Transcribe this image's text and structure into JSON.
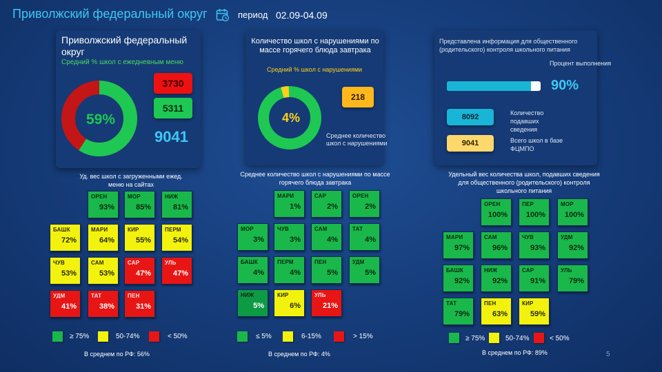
{
  "header": {
    "title": "Приволжский федеральный округ",
    "period_label": "период",
    "period_value": "02.09-04.09"
  },
  "card_menu": {
    "title": "Приволжский федеральный округ",
    "subtitle": "Средний % школ с ежедневным меню",
    "percent_label": "59%",
    "percent": 59,
    "count_red": "3730",
    "count_green": "5311",
    "total": "9041"
  },
  "card_violations": {
    "title": "Количество школ с нарушениями по массе горячего блюда завтрака",
    "subtitle": "Средний % школ с нарушениями",
    "percent_label": "4%",
    "percent": 4,
    "count": "218",
    "avg_label": "Среднее количество школ с нарушениями"
  },
  "card_public": {
    "title": "Представлена информация для общественного (родительского) контроля школьного питания",
    "percent_title": "Процент выполнения",
    "percent_label": "90%",
    "percent": 90,
    "submitted_count": "8092",
    "submitted_label": "Количество подавших сведения",
    "base_count": "9041",
    "base_label": "Всего школ в базе ФЦМПО"
  },
  "panel1": {
    "caption": "Уд. вес школ с загруженными ежед. меню на сайтах",
    "tiles": [
      {
        "code": "ОРЕН",
        "value": "93%",
        "color": "green"
      },
      {
        "code": "МОР",
        "value": "85%",
        "color": "green"
      },
      {
        "code": "НИЖ",
        "value": "81%",
        "color": "green"
      },
      {
        "code": "БАШК",
        "value": "72%",
        "color": "yellow"
      },
      {
        "code": "МАРИ",
        "value": "64%",
        "color": "yellow"
      },
      {
        "code": "КИР",
        "value": "55%",
        "color": "yellow"
      },
      {
        "code": "ПЕРМ",
        "value": "54%",
        "color": "yellow"
      },
      {
        "code": "ЧУВ",
        "value": "53%",
        "color": "yellow"
      },
      {
        "code": "САМ",
        "value": "53%",
        "color": "yellow"
      },
      {
        "code": "САР",
        "value": "47%",
        "color": "red"
      },
      {
        "code": "УЛЬ",
        "value": "47%",
        "color": "red"
      },
      {
        "code": "УДМ",
        "value": "41%",
        "color": "red"
      },
      {
        "code": "ТАТ",
        "value": "38%",
        "color": "red"
      },
      {
        "code": "ПЕН",
        "value": "31%",
        "color": "red"
      }
    ],
    "legend": [
      "≥ 75%",
      "50-74%",
      "< 50%"
    ],
    "footnote": "В среднем по РФ: 56%"
  },
  "panel2": {
    "caption": "Среднее количество школ с нарушениями по массе горячего блюда завтрака",
    "tiles": [
      {
        "code": "МАРИ",
        "value": "1%",
        "color": "green"
      },
      {
        "code": "САР",
        "value": "2%",
        "color": "green"
      },
      {
        "code": "ОРЕН",
        "value": "2%",
        "color": "green"
      },
      {
        "code": "МОР",
        "value": "3%",
        "color": "green"
      },
      {
        "code": "ЧУВ",
        "value": "3%",
        "color": "green"
      },
      {
        "code": "САМ",
        "value": "4%",
        "color": "green"
      },
      {
        "code": "ТАТ",
        "value": "4%",
        "color": "green"
      },
      {
        "code": "БАШК",
        "value": "4%",
        "color": "green"
      },
      {
        "code": "ПЕРМ",
        "value": "4%",
        "color": "green"
      },
      {
        "code": "ПЕН",
        "value": "5%",
        "color": "green"
      },
      {
        "code": "УДМ",
        "value": "5%",
        "color": "green"
      },
      {
        "code": "НИЖ",
        "value": "5%",
        "color": "dgreen"
      },
      {
        "code": "КИР",
        "value": "6%",
        "color": "yellow"
      },
      {
        "code": "УЛЬ",
        "value": "21%",
        "color": "red"
      }
    ],
    "legend": [
      "≤ 5%",
      "6-15%",
      "> 15%"
    ],
    "footnote": "В среднем по РФ: 4%"
  },
  "panel3": {
    "caption": "Удельный вес количества школ, подавших сведения для общественного (родительского) контроля школьного питания",
    "tiles": [
      {
        "code": "ОРЕН",
        "value": "100%",
        "color": "green"
      },
      {
        "code": "ПЕР",
        "value": "100%",
        "color": "green"
      },
      {
        "code": "МОР",
        "value": "100%",
        "color": "green"
      },
      {
        "code": "МАРИ",
        "value": "97%",
        "color": "green"
      },
      {
        "code": "САМ",
        "value": "96%",
        "color": "green"
      },
      {
        "code": "ЧУВ",
        "value": "93%",
        "color": "green"
      },
      {
        "code": "УДМ",
        "value": "92%",
        "color": "green"
      },
      {
        "code": "БАШК",
        "value": "92%",
        "color": "green"
      },
      {
        "code": "НИЖ",
        "value": "92%",
        "color": "green"
      },
      {
        "code": "САР",
        "value": "91%",
        "color": "green"
      },
      {
        "code": "УЛЬ",
        "value": "79%",
        "color": "green"
      },
      {
        "code": "ТАТ",
        "value": "79%",
        "color": "green"
      },
      {
        "code": "ПЕН",
        "value": "63%",
        "color": "yellow"
      },
      {
        "code": "КИР",
        "value": "59%",
        "color": "yellow"
      }
    ],
    "legend": [
      "≥ 75%",
      "50-74%",
      "< 50%"
    ],
    "footnote": "В среднем по РФ: 89%"
  },
  "page_number": "5",
  "colors": {
    "accent": "#3fc7f4",
    "green": "#1ab84a",
    "yellow": "#f2f20e",
    "red": "#e81515",
    "orange": "#ffb81c"
  }
}
